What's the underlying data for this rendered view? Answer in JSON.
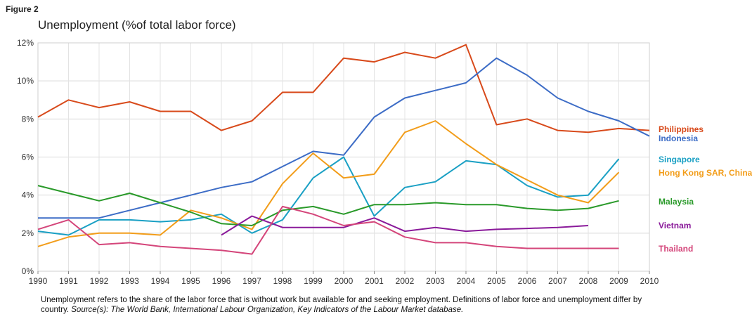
{
  "figure_label": "Figure 2",
  "caption": {
    "main": "Unemployment refers to the share of the labor force that is without work but available for and seeking employment. Definitions of labor force and unemployment differ by country. ",
    "source": "Source(s): The World Bank, International Labour Organization, Key Indicators of the Labour Market database."
  },
  "chart_data": {
    "type": "line",
    "title": "Unemployment (%of total labor force)",
    "xlabel": "",
    "ylabel": "",
    "xlim": [
      1990,
      2010
    ],
    "ylim": [
      0,
      12
    ],
    "x_ticks": [
      "1990",
      "1991",
      "1992",
      "1993",
      "1994",
      "1995",
      "1996",
      "1997",
      "1998",
      "1999",
      "2000",
      "2001",
      "2002",
      "2003",
      "2004",
      "2005",
      "2006",
      "2007",
      "2008",
      "2009",
      "2010"
    ],
    "y_ticks": [
      "0%",
      "2%",
      "4%",
      "6%",
      "8%",
      "10%",
      "12%"
    ],
    "grid": true,
    "legend_position": "right",
    "series": [
      {
        "name": "Philippines",
        "color": "#d84a1b",
        "x": [
          1990,
          1991,
          1992,
          1993,
          1994,
          1995,
          1996,
          1997,
          1998,
          1999,
          2000,
          2001,
          2002,
          2003,
          2004,
          2005,
          2006,
          2007,
          2008,
          2009,
          2010
        ],
        "values": [
          8.1,
          9.0,
          8.6,
          8.9,
          8.4,
          8.4,
          7.4,
          7.9,
          9.4,
          9.4,
          11.2,
          11.0,
          11.5,
          11.2,
          11.9,
          7.7,
          8.0,
          7.4,
          7.3,
          7.5,
          7.4
        ]
      },
      {
        "name": "Indonesia",
        "color": "#3c6cc6",
        "x": [
          1990,
          1991,
          1992,
          1993,
          1994,
          1995,
          1996,
          1997,
          1998,
          1999,
          2000,
          2001,
          2002,
          2003,
          2004,
          2005,
          2006,
          2007,
          2008,
          2009,
          2010
        ],
        "values": [
          2.8,
          2.8,
          2.8,
          3.2,
          3.6,
          4.0,
          4.4,
          4.7,
          5.5,
          6.3,
          6.1,
          8.1,
          9.1,
          9.5,
          9.9,
          11.2,
          10.3,
          9.1,
          8.4,
          7.9,
          7.1
        ]
      },
      {
        "name": "Singapore",
        "color": "#1aa0c4",
        "x": [
          1990,
          1991,
          1992,
          1993,
          1994,
          1995,
          1996,
          1997,
          1998,
          1999,
          2000,
          2001,
          2002,
          2003,
          2004,
          2005,
          2006,
          2007,
          2008,
          2009
        ],
        "values": [
          2.1,
          1.9,
          2.7,
          2.7,
          2.6,
          2.7,
          3.0,
          2.0,
          2.7,
          4.9,
          6.0,
          2.9,
          4.4,
          4.7,
          5.8,
          5.6,
          4.5,
          3.9,
          4.0,
          5.9
        ]
      },
      {
        "name": "Hong Kong SAR, China",
        "color": "#f29d1a",
        "x": [
          1990,
          1991,
          1992,
          1993,
          1994,
          1995,
          1996,
          1997,
          1998,
          1999,
          2000,
          2001,
          2002,
          2003,
          2004,
          2005,
          2006,
          2007,
          2008,
          2009
        ],
        "values": [
          1.3,
          1.8,
          2.0,
          2.0,
          1.9,
          3.2,
          2.8,
          2.2,
          4.6,
          6.2,
          4.9,
          5.1,
          7.3,
          7.9,
          6.7,
          5.6,
          4.8,
          4.0,
          3.6,
          5.2
        ]
      },
      {
        "name": "Malaysia",
        "color": "#2a9a2a",
        "x": [
          1990,
          1991,
          1992,
          1993,
          1994,
          1995,
          1996,
          1997,
          1998,
          1999,
          2000,
          2001,
          2002,
          2003,
          2004,
          2005,
          2006,
          2007,
          2008,
          2009
        ],
        "values": [
          4.5,
          4.1,
          3.7,
          4.1,
          3.6,
          3.1,
          2.5,
          2.4,
          3.2,
          3.4,
          3.0,
          3.5,
          3.5,
          3.6,
          3.5,
          3.5,
          3.3,
          3.2,
          3.3,
          3.7
        ]
      },
      {
        "name": "Vietnam",
        "color": "#8a1a9a",
        "x": [
          1996,
          1997,
          1998,
          1999,
          2000,
          2001,
          2002,
          2003,
          2004,
          2005,
          2006,
          2007,
          2008
        ],
        "values": [
          1.9,
          2.9,
          2.3,
          2.3,
          2.3,
          2.8,
          2.1,
          2.3,
          2.1,
          2.2,
          2.25,
          2.3,
          2.4
        ]
      },
      {
        "name": "Thailand",
        "color": "#d4457a",
        "x": [
          1990,
          1991,
          1992,
          1993,
          1994,
          1995,
          1996,
          1997,
          1998,
          1999,
          2000,
          2001,
          2002,
          2003,
          2004,
          2005,
          2006,
          2007,
          2008,
          2009
        ],
        "values": [
          2.2,
          2.7,
          1.4,
          1.5,
          1.3,
          1.2,
          1.1,
          0.9,
          3.4,
          3.0,
          2.4,
          2.6,
          1.8,
          1.5,
          1.5,
          1.3,
          1.2,
          1.2,
          1.2,
          1.2
        ]
      }
    ]
  }
}
